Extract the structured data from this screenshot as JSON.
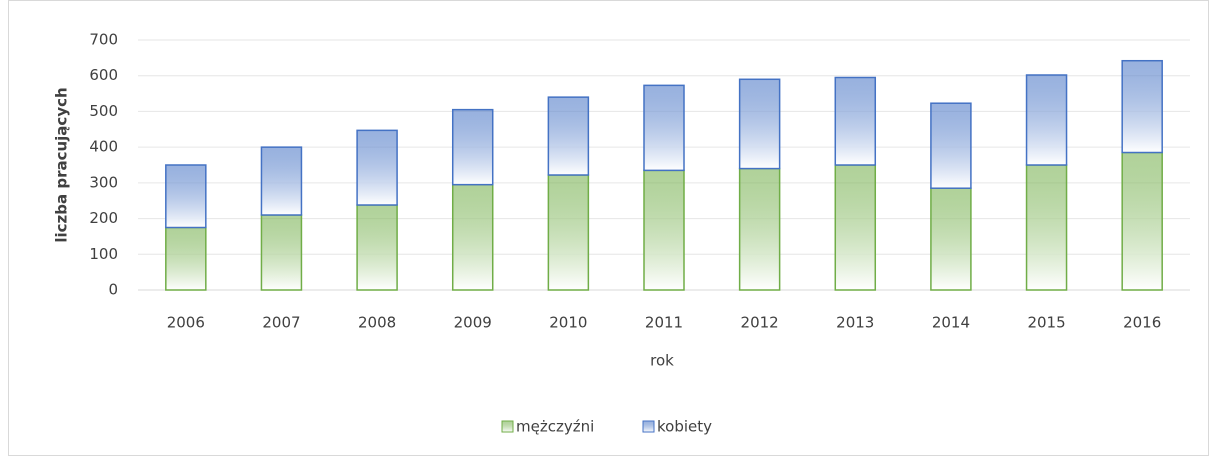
{
  "chart_data": {
    "type": "stacked_bar",
    "categories": [
      "2006",
      "2007",
      "2008",
      "2009",
      "2010",
      "2011",
      "2012",
      "2013",
      "2014",
      "2015",
      "2016"
    ],
    "series": [
      {
        "name": "mężczyźni",
        "color": "#70ad47",
        "values": [
          175,
          210,
          238,
          295,
          322,
          335,
          340,
          350,
          285,
          350,
          385
        ]
      },
      {
        "name": "kobiety",
        "color": "#4472c4",
        "values": [
          175,
          190,
          209,
          210,
          218,
          238,
          250,
          245,
          238,
          252,
          257
        ]
      }
    ],
    "ylim": [
      0,
      700
    ],
    "yticks": [
      0,
      100,
      200,
      300,
      400,
      500,
      600,
      700
    ],
    "grid": true,
    "xlabel": "rok",
    "ylabel": "liczba pracujących",
    "legend": "bottom"
  }
}
